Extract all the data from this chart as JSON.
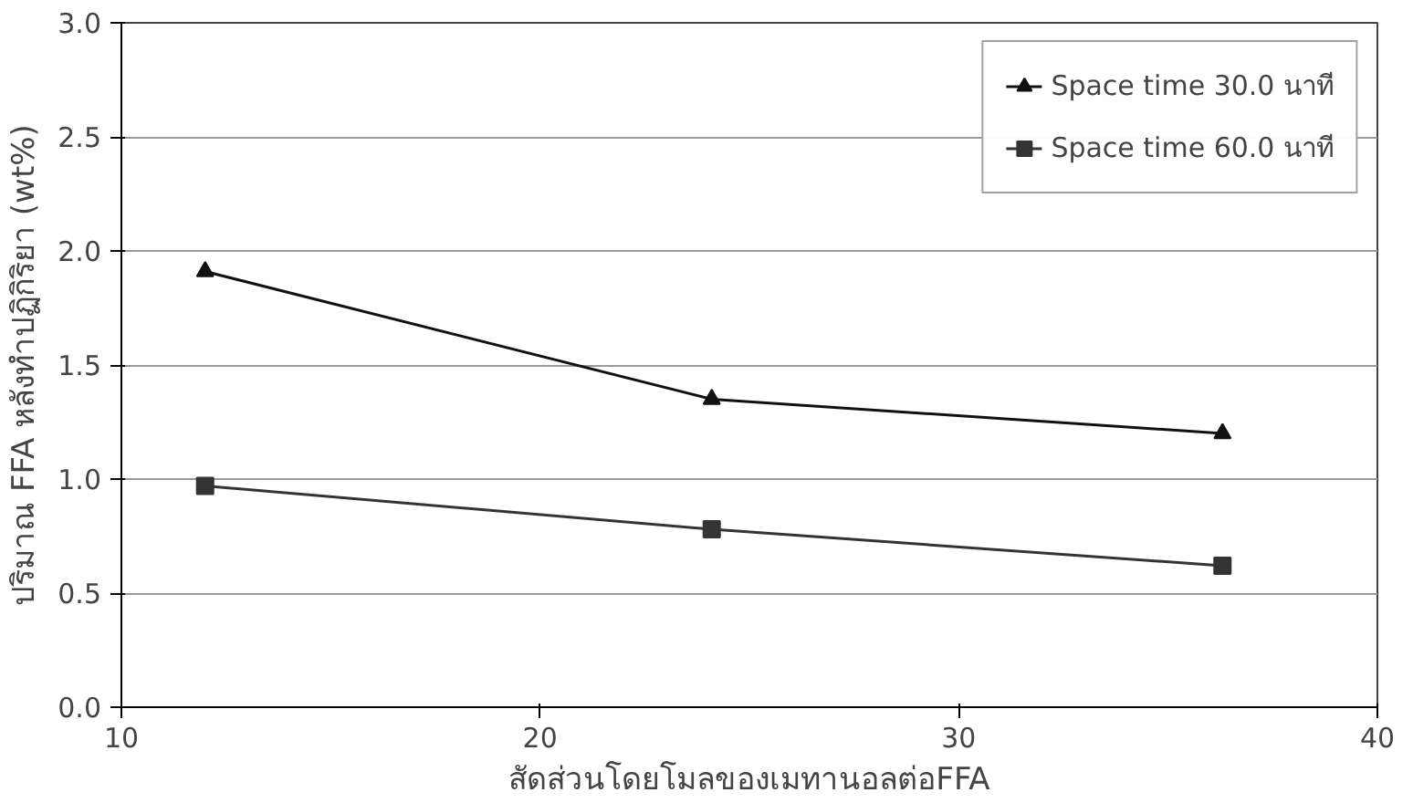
{
  "chart_data": {
    "type": "line",
    "xlabel": "สัดส่วนโดยโมลของเมทานอลต่อFFA",
    "ylabel": "ปริมาณ FFA หลังทำปฏิกิริยา (wt%)",
    "x": [
      12.0,
      24.1,
      36.3
    ],
    "series": [
      {
        "name": "Space time 30.0 นาที",
        "color": "#111111",
        "marker": "triangle",
        "values": [
          1.91,
          1.35,
          1.2
        ]
      },
      {
        "name": "Space time 60.0 นาที",
        "color": "#333333",
        "marker": "square",
        "values": [
          0.97,
          0.78,
          0.62
        ]
      }
    ],
    "xlim": [
      10,
      40
    ],
    "xticks": [
      10,
      20,
      30,
      40
    ],
    "ylim": [
      0,
      3
    ],
    "yticks": [
      {
        "value": 0,
        "label": "0.0"
      },
      0.5,
      {
        "value": 1,
        "label": "1.0"
      },
      1.5,
      {
        "value": 2,
        "label": "2.0"
      },
      2.5,
      {
        "value": 3,
        "label": "3.0"
      }
    ],
    "grid": "y",
    "legend": "top right",
    "line_style": "solid"
  }
}
